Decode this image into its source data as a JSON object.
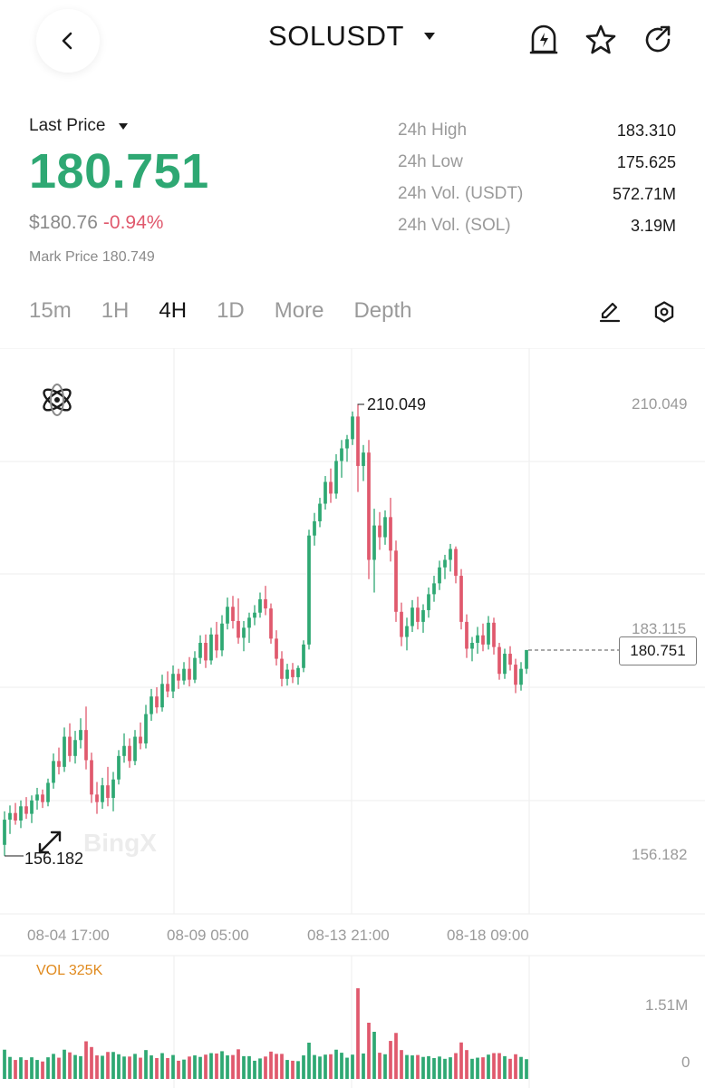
{
  "header": {
    "pair": "SOLUSDT",
    "icons": [
      "back-arrow-icon",
      "dropdown-triangle-icon",
      "price-alert-bell-icon",
      "star-icon",
      "share-icon"
    ]
  },
  "price": {
    "last_price_label": "Last Price",
    "last_price": "180.751",
    "usd_price": "$180.76",
    "change_pct": "-0.94%",
    "mark_price": "Mark Price 180.749"
  },
  "stats": [
    {
      "label": "24h High",
      "value": "183.310"
    },
    {
      "label": "24h Low",
      "value": "175.625"
    },
    {
      "label": "24h Vol. (USDT)",
      "value": "572.71M"
    },
    {
      "label": "24h Vol. (SOL)",
      "value": "3.19M"
    }
  ],
  "tabs": [
    {
      "label": "15m",
      "active": false
    },
    {
      "label": "1H",
      "active": false
    },
    {
      "label": "4H",
      "active": true
    },
    {
      "label": "1D",
      "active": false
    },
    {
      "label": "More",
      "active": false
    },
    {
      "label": "Depth",
      "active": false
    }
  ],
  "colors": {
    "up": "#2ea873",
    "down": "#e0596d",
    "accent_orange": "#e08a1e"
  },
  "chart": {
    "watermark": "BingX",
    "high_marker": "210.049",
    "low_marker": "156.182",
    "axis_top": "210.049",
    "axis_mid": "183.115",
    "axis_low": "156.182",
    "current_price": "180.751",
    "time_labels": [
      "08-04 17:00",
      "08-09 05:00",
      "08-13 21:00",
      "08-18 09:00"
    ],
    "vol_label": "VOL 325K",
    "vol_axis_top": "1.51M",
    "vol_axis_bottom": "0"
  },
  "chart_data": {
    "type": "candlestick",
    "interval": "4H",
    "y_axis_labels": [
      210.049,
      183.115,
      156.182
    ],
    "x_labels": [
      "08-04 17:00",
      "08-09 05:00",
      "08-13 21:00",
      "08-18 09:00"
    ],
    "candles": [
      [
        157.5,
        161.5,
        156.2,
        160.5
      ],
      [
        160.5,
        162.2,
        158.8,
        161.3
      ],
      [
        161.3,
        162.5,
        159.9,
        160.4
      ],
      [
        160.4,
        162.8,
        159.5,
        162.1
      ],
      [
        162.1,
        163.2,
        160.6,
        161.2
      ],
      [
        161.2,
        163.4,
        160.1,
        162.8
      ],
      [
        162.8,
        164.3,
        161.7,
        163.5
      ],
      [
        163.5,
        164.1,
        161.9,
        162.6
      ],
      [
        162.6,
        165.4,
        162.1,
        164.9
      ],
      [
        164.9,
        168.4,
        164.2,
        167.5
      ],
      [
        167.5,
        169.1,
        165.9,
        166.8
      ],
      [
        166.8,
        171.5,
        166.2,
        170.4
      ],
      [
        170.4,
        172.0,
        167.4,
        168.1
      ],
      [
        168.1,
        171.1,
        167.2,
        170.0
      ],
      [
        170.0,
        172.6,
        169.0,
        171.2
      ],
      [
        171.2,
        174.0,
        166.5,
        167.6
      ],
      [
        167.6,
        168.5,
        162.5,
        163.5
      ],
      [
        163.5,
        165.0,
        161.2,
        162.6
      ],
      [
        162.6,
        165.5,
        161.8,
        164.6
      ],
      [
        164.6,
        166.8,
        162.1,
        163.1
      ],
      [
        163.1,
        166.2,
        161.5,
        165.3
      ],
      [
        165.3,
        168.8,
        164.7,
        168.1
      ],
      [
        168.1,
        170.8,
        167.3,
        169.3
      ],
      [
        169.3,
        170.2,
        166.7,
        167.5
      ],
      [
        167.5,
        171.2,
        167.0,
        170.4
      ],
      [
        170.4,
        172.1,
        168.9,
        169.6
      ],
      [
        169.6,
        174.2,
        169.0,
        173.1
      ],
      [
        173.1,
        176.1,
        172.3,
        175.2
      ],
      [
        175.2,
        176.3,
        173.2,
        173.9
      ],
      [
        173.9,
        177.8,
        173.4,
        176.7
      ],
      [
        176.7,
        178.2,
        175.1,
        175.8
      ],
      [
        175.8,
        178.9,
        175.0,
        177.9
      ],
      [
        177.9,
        178.5,
        176.1,
        177.1
      ],
      [
        177.1,
        179.3,
        176.6,
        178.5
      ],
      [
        178.5,
        179.9,
        176.4,
        177.2
      ],
      [
        177.2,
        180.6,
        176.8,
        179.8
      ],
      [
        179.8,
        182.5,
        179.1,
        181.6
      ],
      [
        181.6,
        182.6,
        178.6,
        179.5
      ],
      [
        179.5,
        183.4,
        179.0,
        182.6
      ],
      [
        182.6,
        184.1,
        179.8,
        180.7
      ],
      [
        180.7,
        184.9,
        180.0,
        183.9
      ],
      [
        183.9,
        187.0,
        183.2,
        185.9
      ],
      [
        185.9,
        187.2,
        183.3,
        184.2
      ],
      [
        184.2,
        186.9,
        181.5,
        182.2
      ],
      [
        182.2,
        184.2,
        180.6,
        183.4
      ],
      [
        183.4,
        185.2,
        181.6,
        184.6
      ],
      [
        184.6,
        186.1,
        183.7,
        185.2
      ],
      [
        185.2,
        187.6,
        184.6,
        186.8
      ],
      [
        186.8,
        188.4,
        184.9,
        185.7
      ],
      [
        185.7,
        186.3,
        181.5,
        182.1
      ],
      [
        182.1,
        183.1,
        178.9,
        179.7
      ],
      [
        179.7,
        180.6,
        176.4,
        177.3
      ],
      [
        177.3,
        179.1,
        176.5,
        178.4
      ],
      [
        178.4,
        179.2,
        176.8,
        177.5
      ],
      [
        177.5,
        178.9,
        176.6,
        178.6
      ],
      [
        178.6,
        181.9,
        178.1,
        181.4
      ],
      [
        181.4,
        195.1,
        180.8,
        194.4
      ],
      [
        194.4,
        197.1,
        193.2,
        196.1
      ],
      [
        196.1,
        198.9,
        195.4,
        198.2
      ],
      [
        198.2,
        201.5,
        197.5,
        200.8
      ],
      [
        200.8,
        202.4,
        198.3,
        199.4
      ],
      [
        199.4,
        204.1,
        198.8,
        203.3
      ],
      [
        203.3,
        205.8,
        201.3,
        204.8
      ],
      [
        204.8,
        206.4,
        203.2,
        205.9
      ],
      [
        205.9,
        209.2,
        205.2,
        208.6
      ],
      [
        208.6,
        210.0,
        199.6,
        202.7
      ],
      [
        202.7,
        205.2,
        200.9,
        204.3
      ],
      [
        204.3,
        205.8,
        189.2,
        191.5
      ],
      [
        191.5,
        197.6,
        187.6,
        195.6
      ],
      [
        195.6,
        197.2,
        192.7,
        194.2
      ],
      [
        194.2,
        197.4,
        193.3,
        196.6
      ],
      [
        196.6,
        198.9,
        191.3,
        192.6
      ],
      [
        192.6,
        193.8,
        184.1,
        185.3
      ],
      [
        185.3,
        186.4,
        181.2,
        182.3
      ],
      [
        182.3,
        184.6,
        180.7,
        183.6
      ],
      [
        183.6,
        186.7,
        182.9,
        185.8
      ],
      [
        185.8,
        187.1,
        183.2,
        184.1
      ],
      [
        184.1,
        186.2,
        182.8,
        185.5
      ],
      [
        185.5,
        188.2,
        184.6,
        187.4
      ],
      [
        187.4,
        189.6,
        186.5,
        188.7
      ],
      [
        188.7,
        191.4,
        187.9,
        190.6
      ],
      [
        190.6,
        192.1,
        189.2,
        191.5
      ],
      [
        191.5,
        193.4,
        190.1,
        192.8
      ],
      [
        192.8,
        193.1,
        188.7,
        189.6
      ],
      [
        189.6,
        190.4,
        183.2,
        184.1
      ],
      [
        184.1,
        185.0,
        179.8,
        180.9
      ],
      [
        180.9,
        182.3,
        179.4,
        181.6
      ],
      [
        181.6,
        183.5,
        180.3,
        182.5
      ],
      [
        182.5,
        183.9,
        180.6,
        181.4
      ],
      [
        181.4,
        184.8,
        180.8,
        184.0
      ],
      [
        184.0,
        184.6,
        180.2,
        181.1
      ],
      [
        181.1,
        181.6,
        177.2,
        177.9
      ],
      [
        177.9,
        180.9,
        177.3,
        180.3
      ],
      [
        180.3,
        181.2,
        178.3,
        179.0
      ],
      [
        179.0,
        179.7,
        175.6,
        176.6
      ],
      [
        176.6,
        179.3,
        175.9,
        178.5
      ],
      [
        178.5,
        180.7,
        177.9,
        180.75
      ]
    ],
    "volume_axis": [
      0,
      1510000
    ]
  }
}
